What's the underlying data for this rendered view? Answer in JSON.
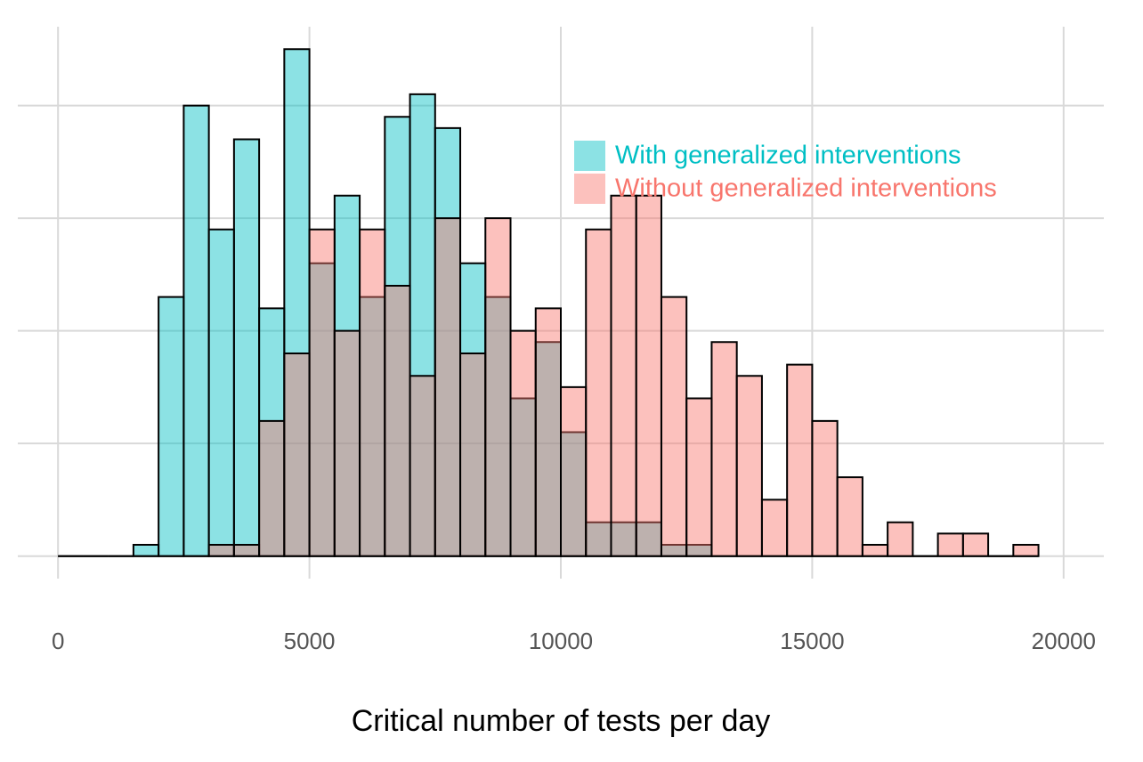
{
  "chart_data": {
    "type": "histogram",
    "xlabel": "Critical number of tests per day",
    "bins": [
      0,
      500,
      1000,
      1500,
      2000,
      2500,
      3000,
      3500,
      4000,
      4500,
      5000,
      5500,
      6000,
      6500,
      7000,
      7500,
      8000,
      8500,
      9000,
      9500,
      10000,
      10500,
      11000,
      11500,
      12000,
      12500,
      13000,
      13500,
      14000,
      14500,
      15000,
      15500,
      16000,
      16500,
      17000,
      17500,
      18000,
      18500,
      19000,
      19500
    ],
    "series": [
      {
        "name": "With generalized interventions",
        "color": "#00bfc4",
        "values": [
          0,
          0,
          0,
          1,
          23,
          40,
          29,
          37,
          22,
          45,
          26,
          32,
          23,
          39,
          41,
          38,
          26,
          23,
          14,
          19,
          11,
          3,
          3,
          3,
          1,
          1,
          0,
          0,
          0,
          0,
          0,
          0,
          0,
          0,
          0,
          0,
          0,
          0,
          0
        ]
      },
      {
        "name": "Without generalized interventions",
        "color": "#f8766d",
        "values": [
          0,
          0,
          0,
          0,
          0,
          0,
          1,
          1,
          12,
          18,
          29,
          20,
          29,
          24,
          16,
          30,
          18,
          30,
          20,
          22,
          15,
          29,
          32,
          32,
          23,
          14,
          19,
          16,
          5,
          17,
          12,
          7,
          1,
          3,
          0,
          2,
          2,
          0,
          1
        ]
      }
    ],
    "xlim": [
      -800,
      20800
    ],
    "xticks": [
      0,
      5000,
      10000,
      15000,
      20000
    ],
    "ylim": [
      -2,
      47
    ],
    "yticks": [
      0,
      10,
      20,
      30,
      40
    ],
    "grid": true,
    "legend": "top-right"
  }
}
